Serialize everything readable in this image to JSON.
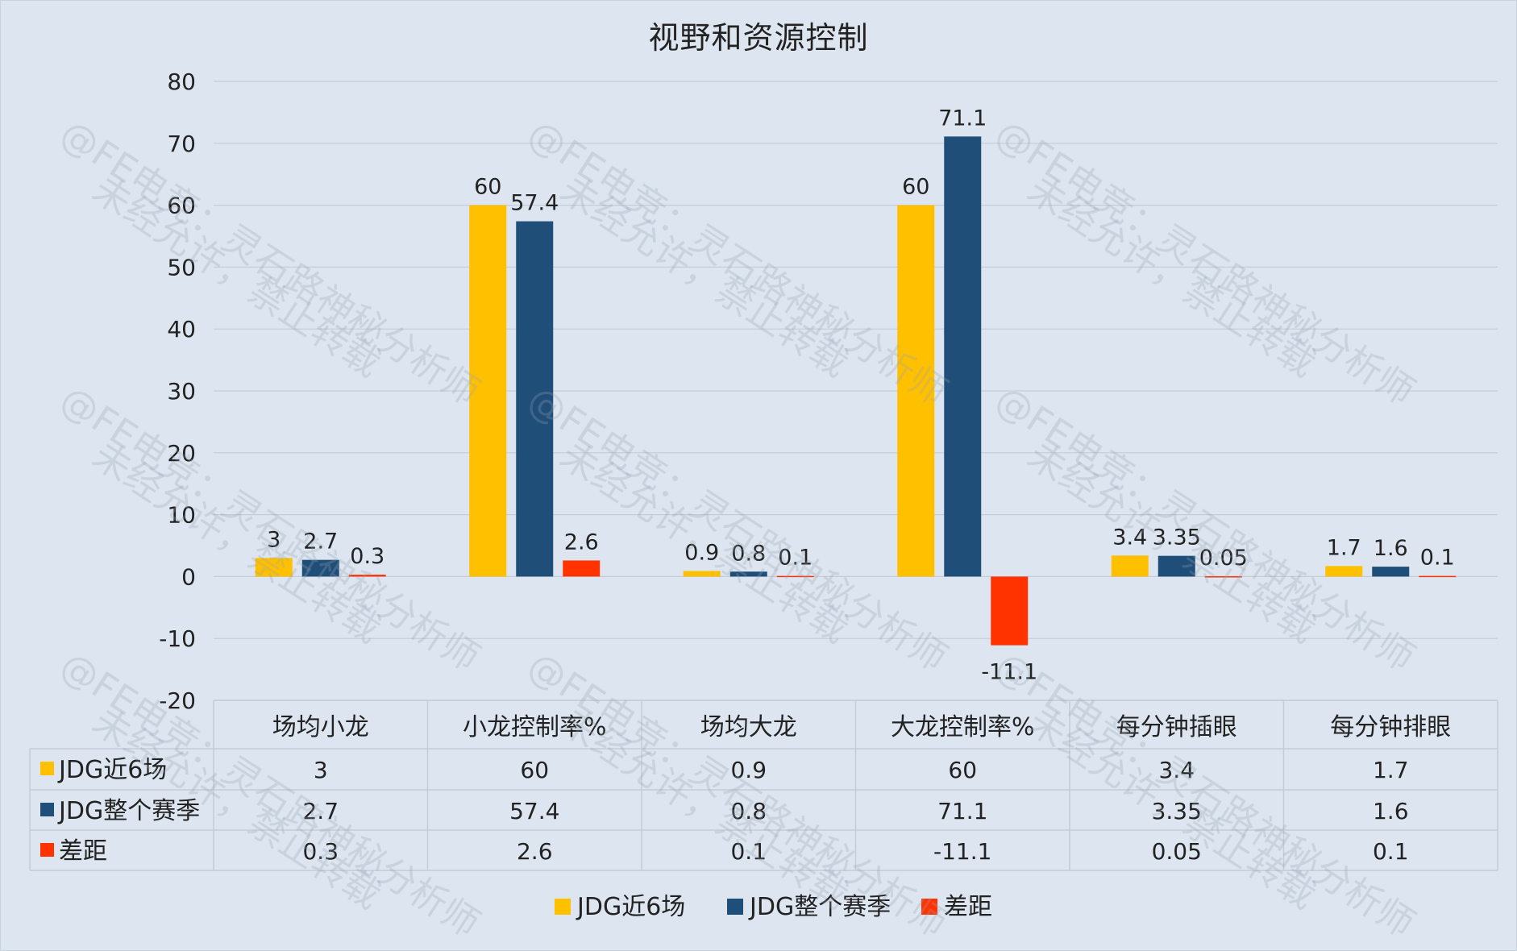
{
  "chart_data": {
    "type": "bar",
    "title": "视野和资源控制",
    "categories": [
      "场均小龙",
      "小龙控制率%",
      "场均大龙",
      "大龙控制率%",
      "每分钟插眼",
      "每分钟排眼"
    ],
    "series": [
      {
        "name": "JDG近6场",
        "color": "#ffc000",
        "values": [
          3,
          60,
          0.9,
          60,
          3.4,
          1.7
        ],
        "labels": [
          "3",
          "60",
          "0.9",
          "60",
          "3.4",
          "1.7"
        ]
      },
      {
        "name": "JDG整个赛季",
        "color": "#1f4e79",
        "values": [
          2.7,
          57.4,
          0.8,
          71.1,
          3.35,
          1.6
        ],
        "labels": [
          "2.7",
          "57.4",
          "0.8",
          "71.1",
          "3.35",
          "1.6"
        ]
      },
      {
        "name": "差距",
        "color": "#ff3300",
        "values": [
          0.3,
          2.6,
          0.1,
          -11.1,
          0.05,
          0.1
        ],
        "labels": [
          "0.3",
          "2.6",
          "0.1",
          "-11.1",
          "0.05",
          "0.1"
        ]
      }
    ],
    "ylim": [
      -20,
      80
    ],
    "yticks": [
      80,
      70,
      60,
      50,
      40,
      30,
      20,
      10,
      0,
      -10,
      -20
    ],
    "grid": true,
    "legend": "bottom",
    "data_table": true
  },
  "watermark": {
    "line1": "@FE电竞：灵石路神秘分析师",
    "line2": "未经允许，禁止转载"
  }
}
